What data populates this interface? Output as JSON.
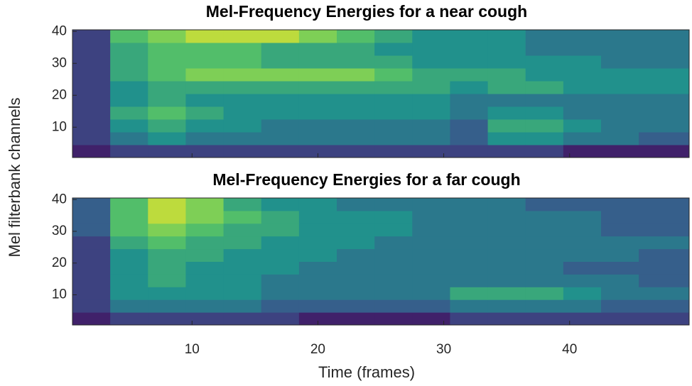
{
  "chart_data": [
    {
      "type": "heatmap",
      "title": "Mel-Frequency Energies for a near cough",
      "ylabel": "Mel filterbank channels",
      "colormap": "viridis",
      "clim": [
        0,
        10
      ],
      "xlim": [
        0.5,
        49.5
      ],
      "ylim": [
        0.5,
        40.5
      ],
      "xticks": [
        10,
        20,
        30,
        40
      ],
      "yticks": [
        10,
        20,
        30,
        40
      ],
      "x_edges": [
        0.5,
        3.5,
        6.5,
        9.5,
        12.5,
        15.5,
        18.5,
        21.5,
        24.5,
        27.5,
        30.5,
        33.5,
        36.5,
        39.5,
        42.5,
        45.5,
        49.5
      ],
      "y_edges": [
        0.5,
        4.5,
        8.5,
        12.5,
        16.5,
        20.5,
        24.5,
        28.5,
        32.5,
        36.5,
        40.5
      ],
      "values": [
        [
          1,
          2,
          2,
          2,
          2,
          2,
          2,
          2,
          2,
          2,
          2,
          2,
          2,
          1,
          1,
          1
        ],
        [
          2,
          4,
          5,
          4,
          4,
          4,
          4,
          4,
          4,
          4,
          3,
          5,
          5,
          4,
          4,
          3
        ],
        [
          2,
          5,
          6,
          5,
          5,
          4,
          4,
          4,
          4,
          4,
          3,
          6,
          6,
          5,
          4,
          4
        ],
        [
          2,
          6,
          7,
          6,
          5,
          5,
          5,
          5,
          5,
          5,
          4,
          5,
          5,
          4,
          4,
          4
        ],
        [
          2,
          5,
          6,
          5,
          5,
          5,
          5,
          5,
          5,
          5,
          4,
          4,
          4,
          4,
          4,
          4
        ],
        [
          2,
          5,
          6,
          6,
          6,
          6,
          6,
          6,
          6,
          6,
          5,
          6,
          6,
          5,
          5,
          5
        ],
        [
          2,
          6,
          7,
          8,
          8,
          8,
          8,
          8,
          7,
          6,
          6,
          6,
          5,
          5,
          5,
          5
        ],
        [
          2,
          6,
          7,
          7,
          7,
          6,
          6,
          6,
          6,
          5,
          5,
          5,
          5,
          5,
          4,
          4
        ],
        [
          2,
          6,
          7,
          7,
          7,
          6,
          6,
          6,
          5,
          5,
          5,
          5,
          4,
          4,
          4,
          4
        ],
        [
          2,
          7,
          8,
          9,
          9,
          9,
          8,
          7,
          6,
          5,
          5,
          5,
          4,
          4,
          4,
          4
        ]
      ]
    },
    {
      "type": "heatmap",
      "title": "Mel-Frequency Energies for a far cough",
      "xlabel": "Time (frames)",
      "colormap": "viridis",
      "clim": [
        0,
        10
      ],
      "xlim": [
        0.5,
        49.5
      ],
      "ylim": [
        0.5,
        40.5
      ],
      "xticks": [
        10,
        20,
        30,
        40
      ],
      "yticks": [
        10,
        20,
        30,
        40
      ],
      "x_edges": [
        0.5,
        3.5,
        6.5,
        9.5,
        12.5,
        15.5,
        18.5,
        21.5,
        24.5,
        27.5,
        30.5,
        33.5,
        36.5,
        39.5,
        42.5,
        45.5,
        49.5
      ],
      "y_edges": [
        0.5,
        4.5,
        8.5,
        12.5,
        16.5,
        20.5,
        24.5,
        28.5,
        32.5,
        36.5,
        40.5
      ],
      "values": [
        [
          1,
          2,
          2,
          2,
          2,
          2,
          1,
          1,
          1,
          1,
          2,
          2,
          2,
          2,
          2,
          2
        ],
        [
          2,
          4,
          4,
          4,
          4,
          3,
          3,
          3,
          3,
          3,
          4,
          4,
          4,
          4,
          3,
          3
        ],
        [
          2,
          5,
          5,
          5,
          5,
          4,
          4,
          4,
          4,
          4,
          6,
          6,
          6,
          5,
          4,
          4
        ],
        [
          2,
          5,
          6,
          5,
          5,
          4,
          4,
          4,
          4,
          4,
          4,
          4,
          4,
          4,
          4,
          3
        ],
        [
          2,
          5,
          6,
          5,
          5,
          5,
          4,
          4,
          4,
          4,
          4,
          4,
          4,
          3,
          3,
          3
        ],
        [
          2,
          5,
          6,
          6,
          5,
          5,
          5,
          4,
          4,
          4,
          4,
          4,
          4,
          4,
          4,
          3
        ],
        [
          2,
          6,
          7,
          6,
          6,
          5,
          5,
          5,
          4,
          4,
          4,
          4,
          4,
          4,
          4,
          4
        ],
        [
          3,
          7,
          8,
          7,
          6,
          6,
          5,
          5,
          5,
          4,
          4,
          4,
          4,
          4,
          3,
          3
        ],
        [
          3,
          7,
          9,
          8,
          7,
          6,
          5,
          5,
          5,
          4,
          4,
          4,
          4,
          4,
          3,
          3
        ],
        [
          3,
          7,
          9,
          8,
          6,
          5,
          5,
          4,
          4,
          4,
          4,
          4,
          3,
          3,
          3,
          3
        ]
      ]
    }
  ]
}
